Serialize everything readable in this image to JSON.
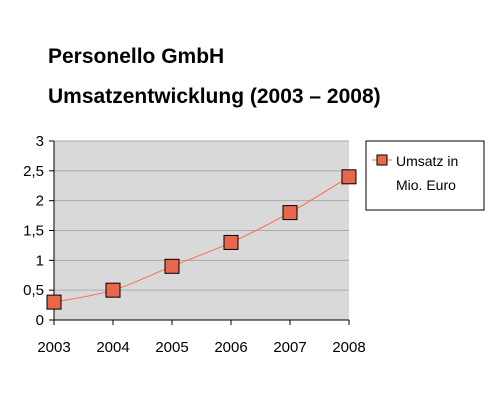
{
  "chart_data": {
    "type": "line",
    "title": "Personello GmbH",
    "subtitle": "Umsatzentwicklung (2003 – 2008)",
    "x": [
      "2003",
      "2004",
      "2005",
      "2006",
      "2007",
      "2008"
    ],
    "series": [
      {
        "name_lines": [
          "Umsatz in",
          "Mio. Euro"
        ],
        "values": [
          0.3,
          0.5,
          0.9,
          1.3,
          1.8,
          2.4
        ]
      }
    ],
    "y_ticks": [
      "0",
      "0,5",
      "1",
      "1,5",
      "2",
      "2,5",
      "3"
    ],
    "ylim": [
      0,
      3
    ],
    "grid": true,
    "legend_position": "right",
    "line_style": "smoothed",
    "colors": {
      "plot_background": "#d9d9d9",
      "gridline": "#aaaaaa",
      "line": "#ff6b4f",
      "marker_fill": "#e8674a",
      "marker_stroke": "#000000",
      "axis": "#000000"
    }
  }
}
